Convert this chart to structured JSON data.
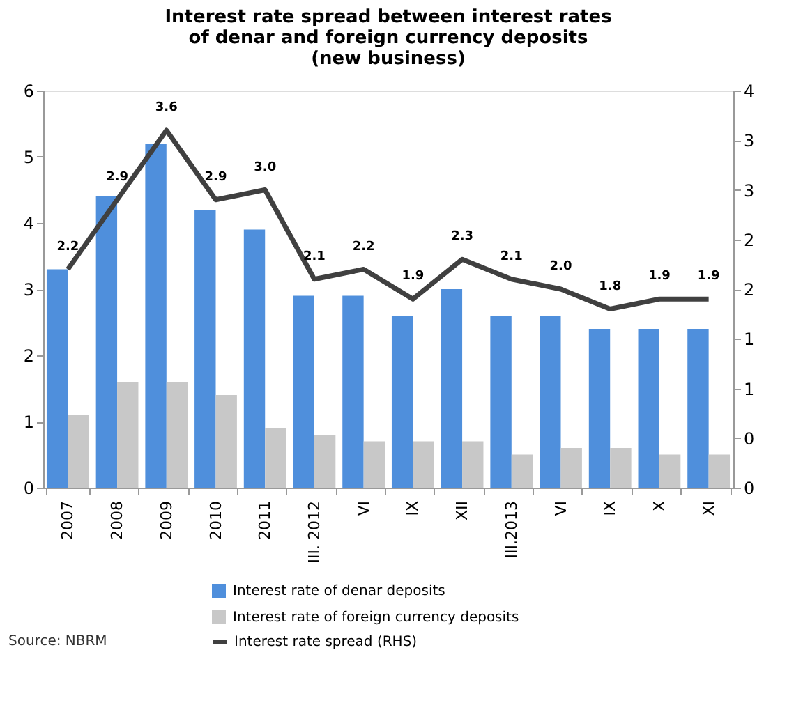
{
  "chart_data": {
    "type": "bar",
    "title": "Interest rate spread between interest rates\nof denar and foreign currency deposits\n(new business)",
    "categories": [
      "2007",
      "2008",
      "2009",
      "2010",
      "2011",
      "III. 2012",
      "VI",
      "IX",
      "XII",
      "III.2013",
      "VI",
      "IX",
      "X",
      "XI"
    ],
    "series": [
      {
        "name": "Interest rate of denar deposits",
        "color": "#4f8fdc",
        "values": [
          3.3,
          4.4,
          5.2,
          4.2,
          3.9,
          2.9,
          2.9,
          2.6,
          3.0,
          2.6,
          2.6,
          2.4,
          2.4,
          2.4
        ]
      },
      {
        "name": "Interest rate of foreign currency deposits",
        "color": "#c8c8c8",
        "values": [
          1.1,
          1.6,
          1.6,
          1.4,
          0.9,
          0.8,
          0.7,
          0.7,
          0.7,
          0.5,
          0.6,
          0.6,
          0.5,
          0.5
        ]
      },
      {
        "name": "Interest rate spread (RHS)",
        "color": "#404040",
        "type": "line",
        "axis": "y2",
        "values": [
          2.2,
          2.9,
          3.6,
          2.9,
          3.0,
          2.1,
          2.2,
          1.9,
          2.3,
          2.1,
          2.0,
          1.8,
          1.9,
          1.9
        ],
        "value_labels": [
          "2.2",
          "2.9",
          "3.6",
          "2.9",
          "3.0",
          "2.1",
          "2.2",
          "1.9",
          "2.3",
          "2.1",
          "2.0",
          "1.8",
          "1.9",
          "1.9"
        ]
      }
    ],
    "ylim": [
      0,
      6
    ],
    "yticks": [
      0,
      1,
      2,
      3,
      4,
      5,
      6
    ],
    "y2lim": [
      0,
      4
    ],
    "y2ticks": [
      {
        "value": 0,
        "label": "0"
      },
      {
        "value": 0.5,
        "label": "0"
      },
      {
        "value": 1,
        "label": "1"
      },
      {
        "value": 1.5,
        "label": "1"
      },
      {
        "value": 2,
        "label": "2"
      },
      {
        "value": 2.5,
        "label": "2"
      },
      {
        "value": 3,
        "label": "3"
      },
      {
        "value": 3.5,
        "label": "3"
      },
      {
        "value": 4,
        "label": "4"
      }
    ],
    "grid": false,
    "legend": "bottom",
    "annotations": [
      "Source: NBRM"
    ]
  }
}
